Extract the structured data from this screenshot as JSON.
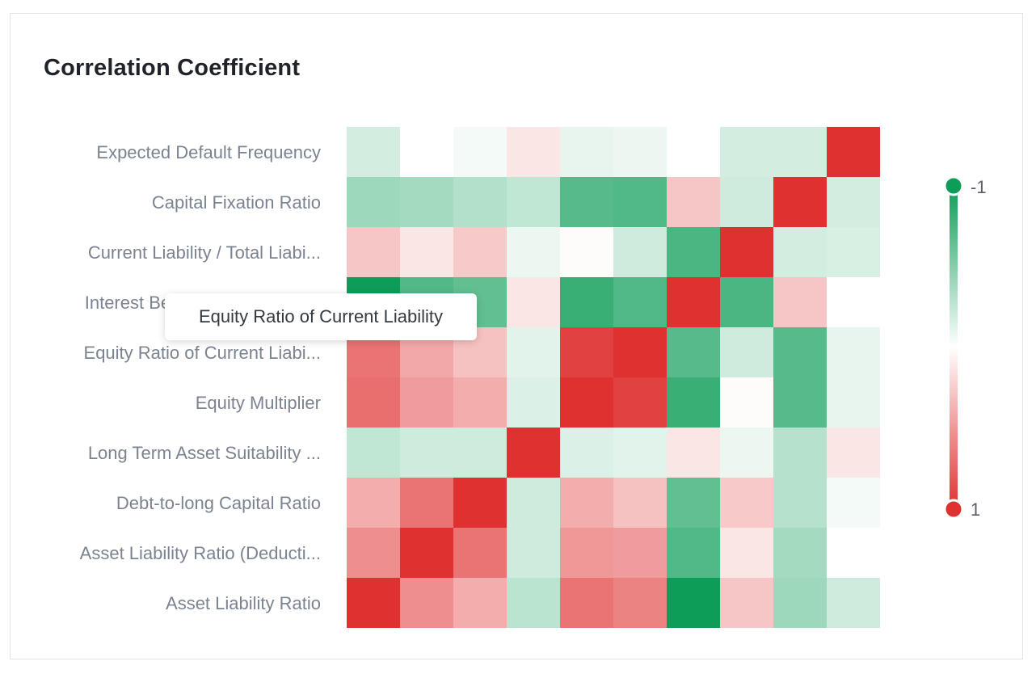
{
  "title": "Correlation Coefficient",
  "tooltip": {
    "text": "Equity Ratio of Current Liability"
  },
  "legend": {
    "min_label": "-1",
    "max_label": "1",
    "min": -1,
    "max": 1,
    "colors": {
      "negative": "#0d9d58",
      "neutral": "#ffffff",
      "positive": "#e03131"
    }
  },
  "chart_data": {
    "type": "heatmap",
    "title": "Correlation Coefficient",
    "rows": [
      "Expected Default Frequency",
      "Capital Fixation Ratio",
      "Current Liability / Total Liabi...",
      "Interest Bearing Liability Ratio",
      "Equity Ratio of Current Liabi...",
      "Equity Multiplier",
      "Long Term Asset Suitability ...",
      "Debt-to-long Capital Ratio",
      "Asset Liability Ratio (Deducti...",
      "Asset Liability Ratio"
    ],
    "columns": 10,
    "values": [
      [
        -0.18,
        0.0,
        -0.05,
        0.12,
        -0.1,
        -0.08,
        0.0,
        -0.18,
        -0.18,
        1.0
      ],
      [
        -0.4,
        -0.38,
        -0.32,
        -0.26,
        -0.7,
        -0.72,
        0.28,
        -0.2,
        1.0,
        -0.18
      ],
      [
        0.28,
        0.12,
        0.26,
        -0.08,
        0.02,
        -0.2,
        -0.75,
        1.0,
        -0.18,
        -0.16
      ],
      [
        -1.0,
        -0.72,
        -0.65,
        0.12,
        -0.82,
        -0.72,
        1.0,
        -0.75,
        0.28,
        0.0
      ],
      [
        0.68,
        0.42,
        0.3,
        -0.12,
        0.92,
        1.0,
        -0.7,
        -0.2,
        -0.7,
        -0.1
      ],
      [
        0.7,
        0.48,
        0.4,
        -0.15,
        1.0,
        0.92,
        -0.82,
        0.02,
        -0.7,
        -0.1
      ],
      [
        -0.26,
        -0.2,
        -0.2,
        1.0,
        -0.15,
        -0.12,
        0.12,
        -0.08,
        -0.3,
        0.12
      ],
      [
        0.4,
        0.68,
        1.0,
        -0.2,
        0.4,
        0.3,
        -0.65,
        0.26,
        -0.3,
        -0.05
      ],
      [
        0.55,
        1.0,
        0.68,
        -0.2,
        0.5,
        0.48,
        -0.72,
        0.12,
        -0.38,
        0.0
      ],
      [
        1.0,
        0.55,
        0.4,
        -0.28,
        0.68,
        0.6,
        -1.0,
        0.28,
        -0.4,
        -0.2
      ]
    ]
  }
}
